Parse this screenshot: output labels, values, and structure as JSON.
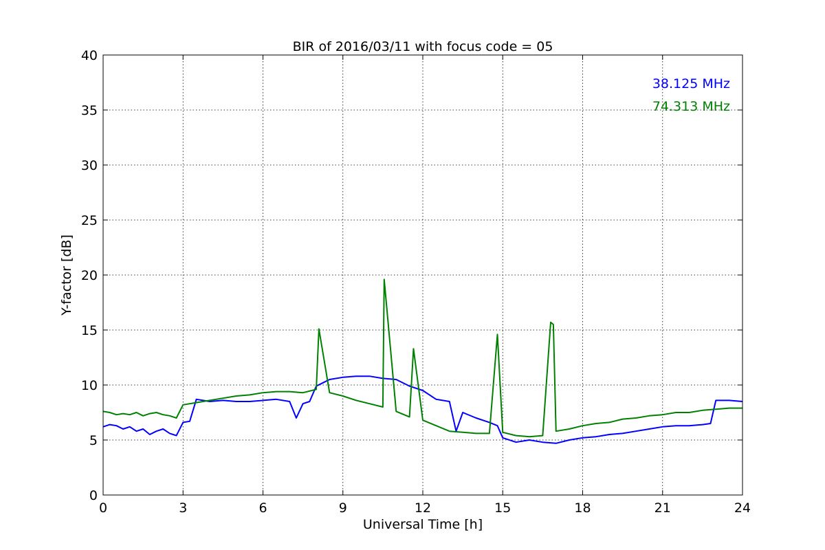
{
  "chart_data": {
    "type": "line",
    "title": "BIR of 2016/03/11 with focus code = 05",
    "xlabel": "Universal Time [h]",
    "ylabel": "Y-factor [dB]",
    "xlim": [
      0,
      24
    ],
    "ylim": [
      0,
      40
    ],
    "xticks": [
      "0",
      "3",
      "6",
      "9",
      "12",
      "15",
      "18",
      "21",
      "24"
    ],
    "yticks": [
      "0",
      "5",
      "10",
      "15",
      "20",
      "25",
      "30",
      "35",
      "40"
    ],
    "grid": true,
    "legend_position": "top-right",
    "series": [
      {
        "name": "38.125 MHz",
        "color": "#0000ff",
        "x": [
          0.0,
          0.25,
          0.5,
          0.75,
          1.0,
          1.25,
          1.5,
          1.75,
          2.0,
          2.25,
          2.5,
          2.75,
          3.0,
          3.25,
          3.5,
          3.75,
          4.0,
          4.5,
          5.0,
          5.5,
          6.0,
          6.5,
          7.0,
          7.25,
          7.5,
          7.75,
          8.0,
          8.25,
          8.5,
          9.0,
          9.5,
          10.0,
          10.5,
          11.0,
          11.5,
          12.0,
          12.5,
          13.0,
          13.25,
          13.5,
          14.0,
          14.5,
          14.8,
          15.0,
          15.5,
          16.0,
          16.5,
          17.0,
          17.5,
          18.0,
          18.5,
          19.0,
          19.5,
          20.0,
          20.5,
          21.0,
          21.5,
          22.0,
          22.5,
          22.8,
          23.0,
          23.5,
          24.0
        ],
        "values": [
          6.2,
          6.4,
          6.3,
          6.0,
          6.2,
          5.8,
          6.0,
          5.5,
          5.8,
          6.0,
          5.6,
          5.4,
          6.6,
          6.7,
          8.7,
          8.6,
          8.5,
          8.6,
          8.5,
          8.5,
          8.6,
          8.7,
          8.5,
          7.0,
          8.3,
          8.5,
          9.9,
          10.2,
          10.5,
          10.7,
          10.8,
          10.8,
          10.6,
          10.5,
          9.9,
          9.5,
          8.7,
          8.5,
          5.8,
          7.5,
          7.0,
          6.6,
          6.3,
          5.2,
          4.8,
          5.0,
          4.8,
          4.7,
          5.0,
          5.2,
          5.3,
          5.5,
          5.6,
          5.8,
          6.0,
          6.2,
          6.3,
          6.3,
          6.4,
          6.5,
          8.6,
          8.6,
          8.5
        ]
      },
      {
        "name": "74.313 MHz",
        "color": "#008000",
        "x": [
          0.0,
          0.25,
          0.5,
          0.75,
          1.0,
          1.25,
          1.5,
          1.75,
          2.0,
          2.25,
          2.5,
          2.75,
          3.0,
          3.5,
          4.0,
          4.5,
          5.0,
          5.5,
          6.0,
          6.5,
          7.0,
          7.5,
          8.0,
          8.1,
          8.5,
          9.0,
          9.5,
          10.0,
          10.5,
          10.55,
          11.0,
          11.5,
          11.65,
          12.0,
          12.5,
          13.0,
          13.5,
          14.0,
          14.5,
          14.8,
          15.0,
          15.5,
          16.0,
          16.5,
          16.8,
          16.9,
          17.0,
          17.5,
          18.0,
          18.5,
          19.0,
          19.5,
          20.0,
          20.5,
          21.0,
          21.5,
          22.0,
          22.5,
          23.0,
          23.5,
          24.0
        ],
        "values": [
          7.6,
          7.5,
          7.3,
          7.4,
          7.3,
          7.5,
          7.2,
          7.4,
          7.5,
          7.3,
          7.2,
          7.0,
          8.2,
          8.4,
          8.6,
          8.8,
          9.0,
          9.1,
          9.3,
          9.4,
          9.4,
          9.3,
          9.6,
          15.1,
          9.3,
          9.0,
          8.6,
          8.3,
          8.0,
          19.6,
          7.6,
          7.1,
          13.3,
          6.8,
          6.3,
          5.8,
          5.7,
          5.6,
          5.6,
          14.6,
          5.7,
          5.4,
          5.3,
          5.4,
          15.7,
          15.5,
          5.8,
          6.0,
          6.3,
          6.5,
          6.6,
          6.9,
          7.0,
          7.2,
          7.3,
          7.5,
          7.5,
          7.7,
          7.8,
          7.9,
          7.9
        ]
      }
    ]
  }
}
